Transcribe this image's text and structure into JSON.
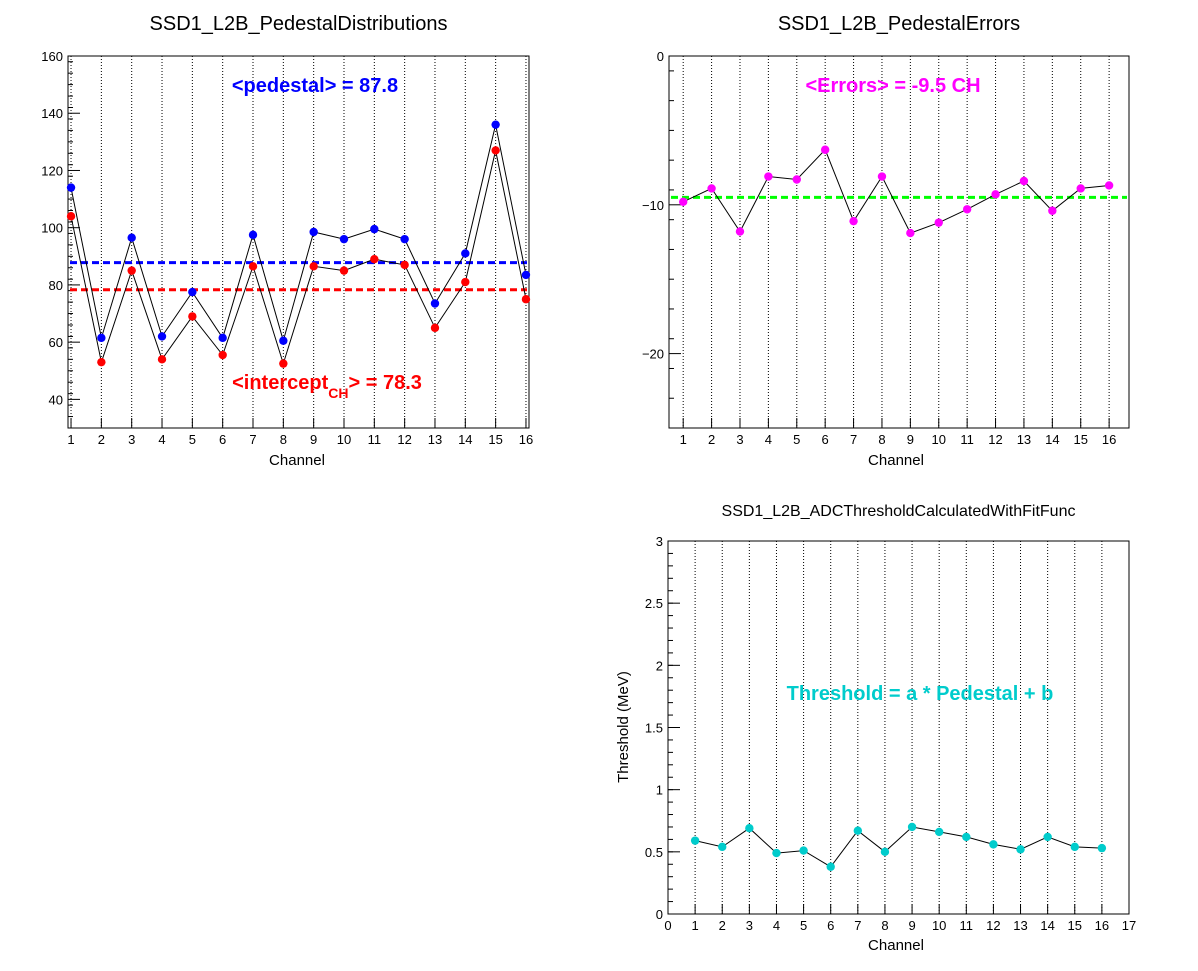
{
  "chart_data": [
    {
      "type": "line",
      "title": "SSD1_L2B_PedestalDistributions",
      "xlabel": "Channel",
      "ylabel": "",
      "xlim": [
        0.9,
        16.1
      ],
      "ylim": [
        30,
        160
      ],
      "x": [
        1,
        2,
        3,
        4,
        5,
        6,
        7,
        8,
        9,
        10,
        11,
        12,
        13,
        14,
        15,
        16
      ],
      "xticks": [
        "1",
        "2",
        "3",
        "4",
        "5",
        "6",
        "7",
        "8",
        "9",
        "10",
        "11",
        "12",
        "13",
        "14",
        "15",
        "16"
      ],
      "yticks": [
        "40",
        "60",
        "80",
        "100",
        "120",
        "140",
        "160"
      ],
      "series": [
        {
          "color": "#0000ff",
          "values": [
            114,
            61.5,
            96.5,
            62,
            77.5,
            61.5,
            97.5,
            60.5,
            98.5,
            96,
            99.5,
            96,
            73.5,
            91,
            136,
            83.5
          ]
        },
        {
          "color": "#ff0000",
          "values": [
            104,
            53,
            85,
            54,
            69,
            55.5,
            86.5,
            52.5,
            86.5,
            85,
            89,
            87,
            65,
            81,
            127,
            75
          ]
        }
      ],
      "hlines": [
        {
          "value": 87.8,
          "color": "#0000ff"
        },
        {
          "value": 78.3,
          "color": "#ff0000"
        }
      ],
      "annotations": [
        {
          "text": "<pedestal> = 87.8",
          "color": "#0000ff"
        },
        {
          "text_main": "<intercept",
          "text_sub": "CH",
          "text_tail": "> = 78.3",
          "color": "#ff0000"
        }
      ],
      "grid": "vertical-dotted"
    },
    {
      "type": "line",
      "title": "SSD1_L2B_PedestalErrors",
      "xlabel": "Channel",
      "ylabel": "",
      "xlim": [
        0.5,
        16.7
      ],
      "ylim": [
        -25,
        0
      ],
      "x": [
        1,
        2,
        3,
        4,
        5,
        6,
        7,
        8,
        9,
        10,
        11,
        12,
        13,
        14,
        15,
        16
      ],
      "xticks": [
        "1",
        "2",
        "3",
        "4",
        "5",
        "6",
        "7",
        "8",
        "9",
        "10",
        "11",
        "12",
        "13",
        "14",
        "15",
        "16"
      ],
      "yticks": [
        "0",
        "−10",
        "−20"
      ],
      "series": [
        {
          "color": "#ff00ff",
          "values": [
            -9.8,
            -8.9,
            -11.8,
            -8.1,
            -8.3,
            -6.3,
            -11.1,
            -8.1,
            -11.9,
            -11.2,
            -10.3,
            -9.3,
            -8.4,
            -10.4,
            -8.9,
            -8.7
          ]
        }
      ],
      "hlines": [
        {
          "value": -9.5,
          "color": "#00ff00"
        }
      ],
      "annotations": [
        {
          "text": "<Errors> = -9.5 CH",
          "color": "#ff00ff"
        }
      ],
      "grid": "vertical-dotted"
    },
    {
      "type": "line",
      "title": "SSD1_L2B_ADCThresholdCalculatedWithFitFunc",
      "xlabel": "Channel",
      "ylabel": "Threshold (MeV)",
      "xlim": [
        0,
        17
      ],
      "ylim": [
        0,
        3
      ],
      "x": [
        1,
        2,
        3,
        4,
        5,
        6,
        7,
        8,
        9,
        10,
        11,
        12,
        13,
        14,
        15,
        16
      ],
      "xticks": [
        "0",
        "1",
        "2",
        "3",
        "4",
        "5",
        "6",
        "7",
        "8",
        "9",
        "10",
        "11",
        "12",
        "13",
        "14",
        "15",
        "16",
        "17"
      ],
      "yticks": [
        "0",
        "0.5",
        "1",
        "1.5",
        "2",
        "2.5",
        "3"
      ],
      "series": [
        {
          "color": "#00cccc",
          "values": [
            0.59,
            0.54,
            0.69,
            0.49,
            0.51,
            0.38,
            0.67,
            0.5,
            0.7,
            0.66,
            0.62,
            0.56,
            0.52,
            0.62,
            0.54,
            0.53
          ]
        }
      ],
      "annotations": [
        {
          "text": "Threshold = a * Pedestal + b",
          "color": "#00cccc"
        }
      ],
      "grid": "vertical-dotted"
    }
  ]
}
